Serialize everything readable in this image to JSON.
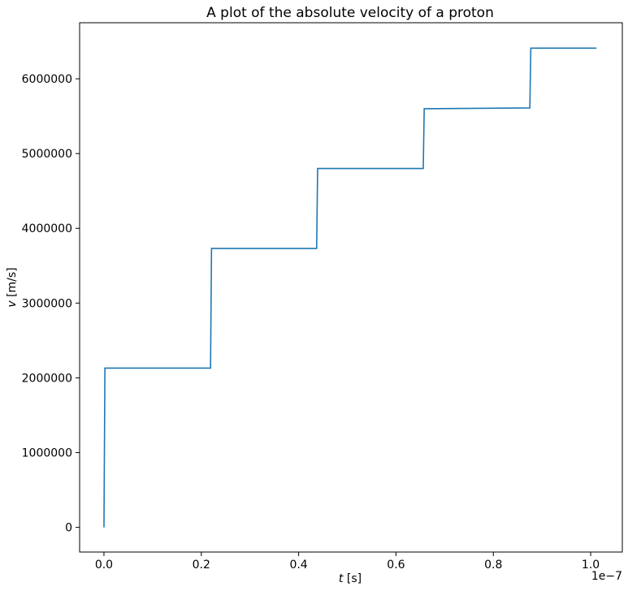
{
  "chart_data": {
    "type": "line",
    "title": "A plot of the absolute velocity of a proton",
    "xlabel_var": "t",
    "xlabel_unit": " [s]",
    "ylabel_var": "v",
    "ylabel_unit": " [m/s]",
    "x_offset_text": "1e−7",
    "xlim": [
      -0.05,
      1.065
    ],
    "ylim": [
      -330000,
      6750000
    ],
    "xticks": [
      0.0,
      0.2,
      0.4,
      0.6,
      0.8,
      1.0
    ],
    "xtick_labels": [
      "0.0",
      "0.2",
      "0.4",
      "0.6",
      "0.8",
      "1.0"
    ],
    "yticks": [
      0,
      1000000,
      2000000,
      3000000,
      4000000,
      5000000,
      6000000
    ],
    "ytick_labels": [
      "0",
      "1000000",
      "2000000",
      "3000000",
      "4000000",
      "5000000",
      "6000000"
    ],
    "grid": false,
    "series": [
      {
        "color": "#1f77b4",
        "x": [
          0.0,
          0.002,
          0.219,
          0.221,
          0.437,
          0.439,
          0.656,
          0.658,
          0.875,
          0.877,
          1.012
        ],
        "y": [
          0,
          2130000,
          2130000,
          3730000,
          3730000,
          4800000,
          4800000,
          5600000,
          5610000,
          6410000,
          6410000
        ]
      }
    ]
  }
}
